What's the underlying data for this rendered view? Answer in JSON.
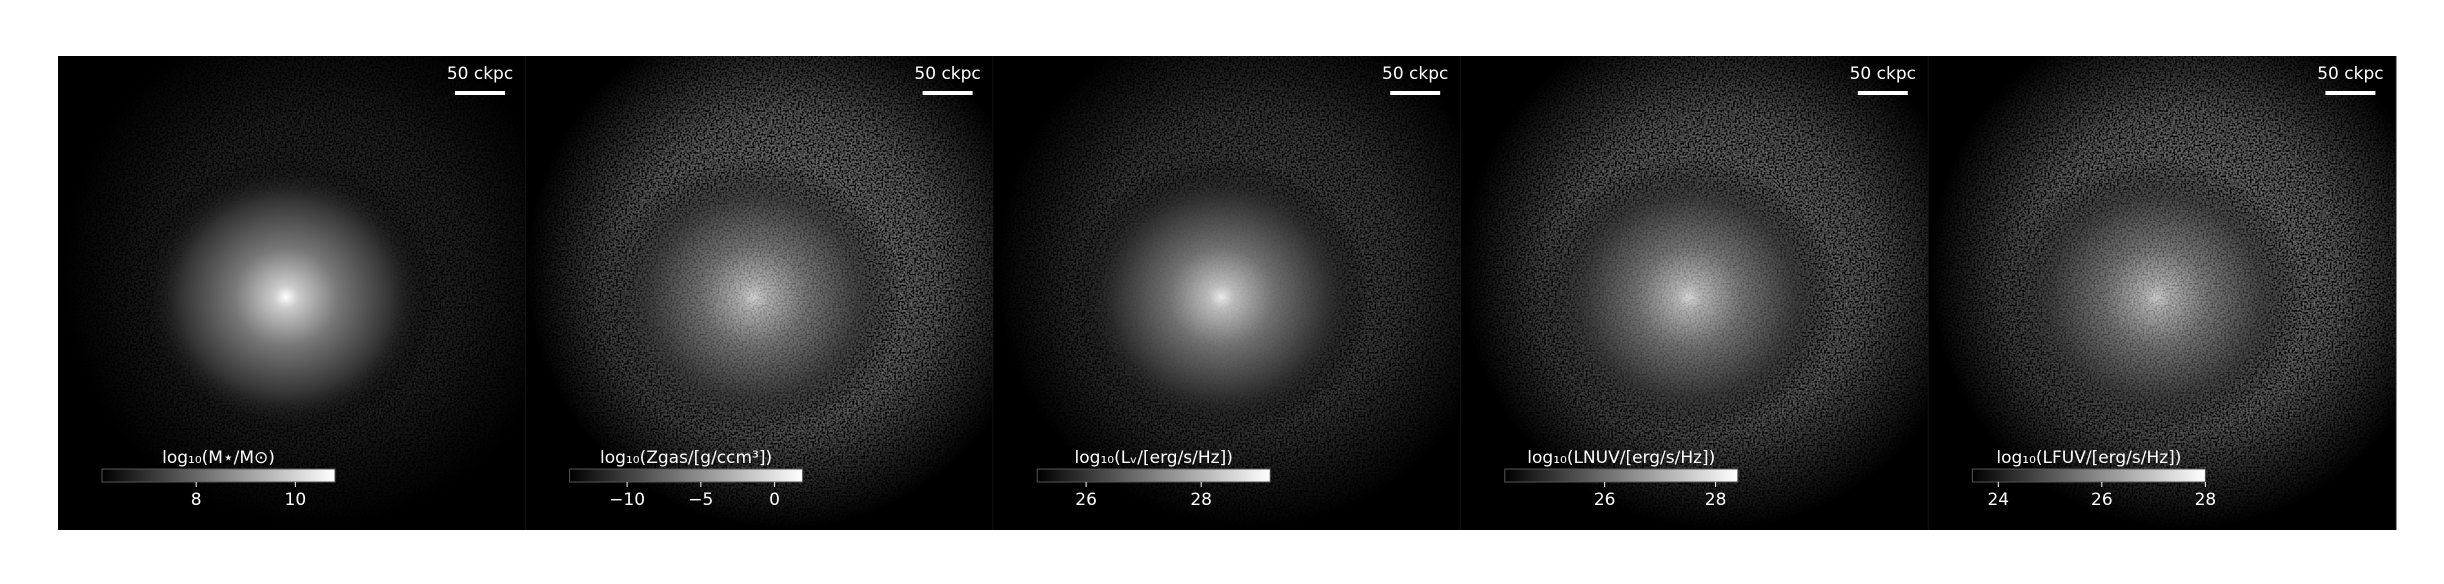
{
  "panels": [
    {
      "scale_bar": "50 ckpc",
      "colorbar": {
        "label": "log₁₀(M⋆/M⊙)",
        "lim": [
          6.1,
          10.8
        ],
        "ticks": [
          8,
          10
        ]
      }
    },
    {
      "scale_bar": "50 ckpc",
      "colorbar": {
        "label": "log₁₀(Zgas/[g/ccm³])",
        "lim": [
          -13.9,
          1.9
        ],
        "ticks": [
          {
            "value": -10,
            "label": "−10"
          },
          {
            "value": -5,
            "label": "−5"
          },
          0
        ]
      }
    },
    {
      "scale_bar": "50 ckpc",
      "colorbar": {
        "label": "log₁₀(Lᵥ/[erg/s/Hz])",
        "lim": [
          25.15,
          29.2
        ],
        "ticks": [
          26,
          28
        ]
      }
    },
    {
      "scale_bar": "50 ckpc",
      "colorbar": {
        "label": "log₁₀(LNUV/[erg/s/Hz])",
        "lim": [
          24.2,
          28.4
        ],
        "ticks": [
          26,
          28
        ]
      }
    },
    {
      "scale_bar": "50 ckpc",
      "colorbar": {
        "label": "log₁₀(LFUV/[erg/s/Hz])",
        "lim": [
          23.5,
          28.0
        ],
        "ticks": [
          24,
          26,
          28
        ]
      }
    }
  ]
}
